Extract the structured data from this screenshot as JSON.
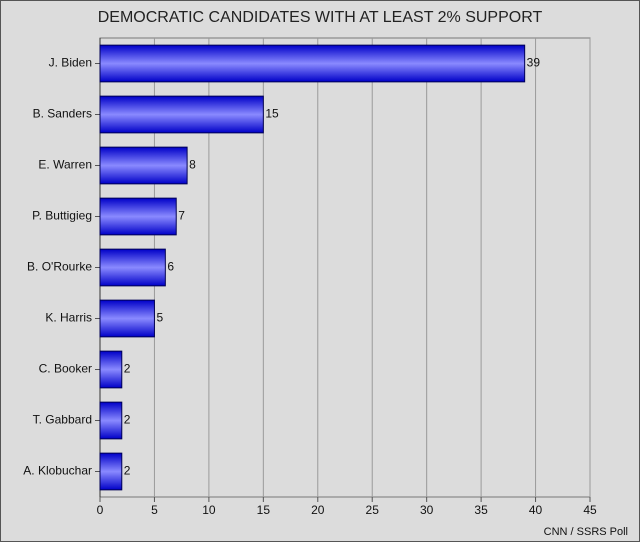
{
  "chart_data": {
    "type": "bar",
    "orientation": "horizontal",
    "title": "DEMOCRATIC CANDIDATES WITH AT LEAST 2% SUPPORT",
    "categories": [
      "J. Biden",
      "B. Sanders",
      "E. Warren",
      "P. Buttigieg",
      "B. O'Rourke",
      "K. Harris",
      "C. Booker",
      "T. Gabbard",
      "A. Klobuchar"
    ],
    "values": [
      39,
      15,
      8,
      7,
      6,
      5,
      2,
      2,
      2
    ],
    "color": "#0000ee",
    "xlim": [
      0,
      45
    ],
    "xticks": [
      0,
      5,
      10,
      15,
      20,
      25,
      30,
      35,
      40,
      45
    ],
    "grid": true,
    "source": "CNN / SSRS Poll"
  }
}
